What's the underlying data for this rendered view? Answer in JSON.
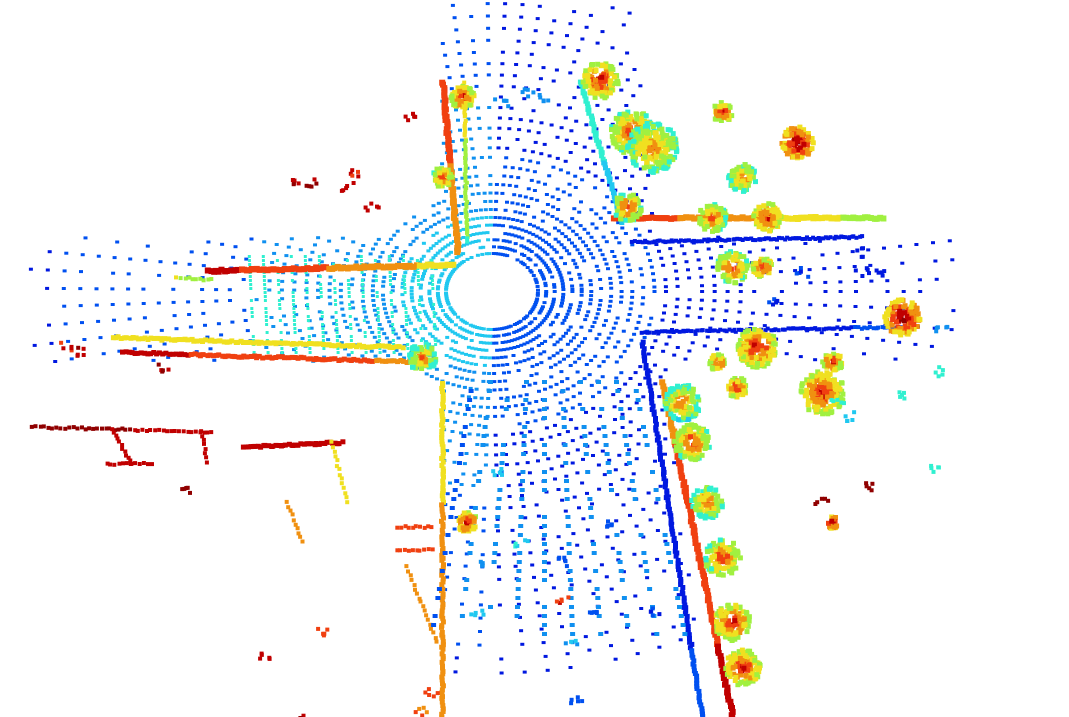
{
  "scene": {
    "type": "lidar-point-cloud-birds-eye-view",
    "background": "#ffffff",
    "colormap": [
      "#0018e0",
      "#0050f0",
      "#1090f0",
      "#20c8f0",
      "#30f0d0",
      "#a0f040",
      "#f0e020",
      "#f09010",
      "#f04010",
      "#c00000",
      "#900000"
    ],
    "ego_vehicle_shape": "white-blob"
  }
}
